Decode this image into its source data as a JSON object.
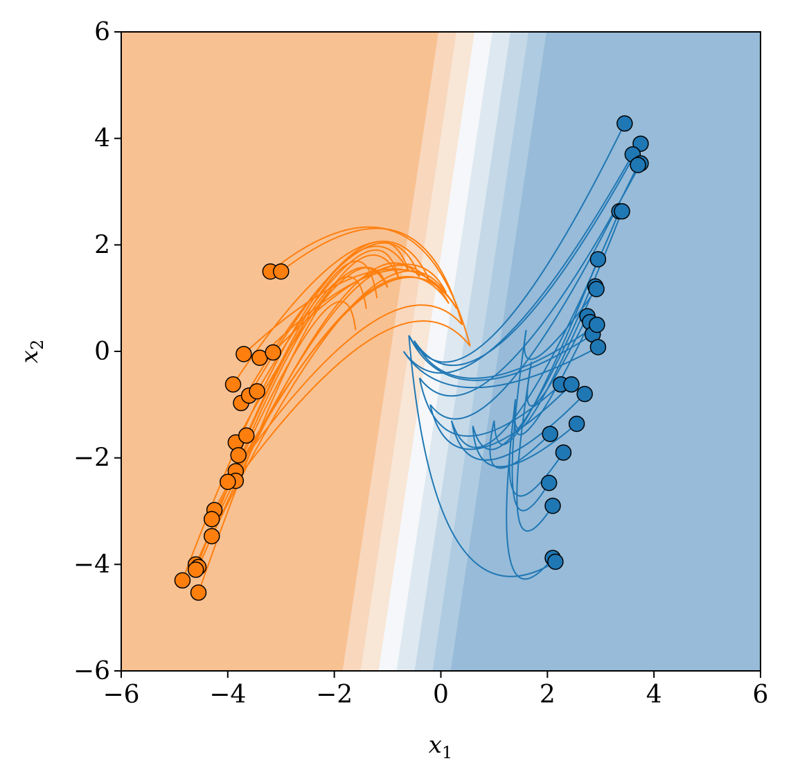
{
  "chart_data": {
    "type": "scatter",
    "title": "",
    "xlabel": "x",
    "xlabel_sub": "1",
    "ylabel": "x",
    "ylabel_sub": "2",
    "xlim": [
      -6,
      6
    ],
    "ylim": [
      -6,
      6
    ],
    "xticks": [
      -6,
      -4,
      -2,
      0,
      2,
      4,
      6
    ],
    "yticks": [
      -6,
      -4,
      -2,
      0,
      2,
      4,
      6
    ],
    "xtick_labels": [
      "−6",
      "−4",
      "−2",
      "0",
      "2",
      "4",
      "6"
    ],
    "ytick_labels": [
      "−6",
      "−4",
      "−2",
      "0",
      "2",
      "4",
      "6"
    ],
    "grid": false,
    "legend": "none",
    "colors": {
      "orange_series": "#ff7f0e",
      "blue_series": "#1f77b4",
      "region_orange": "#f8c192",
      "region_blue": "#97bbd8",
      "point_edge": "#000000"
    },
    "decision_boundary": {
      "direction_note": "linear contour bands",
      "x_at_bottom": -1.0,
      "x_at_top": 0.8,
      "bands": [
        "#f8c192",
        "#f8d7bd",
        "#f8e6d6",
        "#f5f7fa",
        "#dde8f0",
        "#c4d8e7",
        "#aecbe1",
        "#97bbd8"
      ]
    },
    "series": [
      {
        "class": "orange",
        "points": [
          [
            -3.2,
            1.5
          ],
          [
            -3.0,
            1.5
          ],
          [
            -3.7,
            -0.05
          ],
          [
            -3.4,
            -0.12
          ],
          [
            -3.15,
            -0.02
          ],
          [
            -3.9,
            -0.62
          ],
          [
            -3.75,
            -0.97
          ],
          [
            -3.6,
            -0.83
          ],
          [
            -3.45,
            -0.75
          ],
          [
            -3.85,
            -1.71
          ],
          [
            -3.65,
            -1.58
          ],
          [
            -3.8,
            -1.95
          ],
          [
            -3.85,
            -2.25
          ],
          [
            -3.85,
            -2.43
          ],
          [
            -4.0,
            -2.45
          ],
          [
            -4.25,
            -2.98
          ],
          [
            -4.3,
            -3.15
          ],
          [
            -4.3,
            -3.47
          ],
          [
            -4.6,
            -4.0
          ],
          [
            -4.55,
            -4.05
          ],
          [
            -4.85,
            -4.3
          ],
          [
            -4.55,
            -4.53
          ],
          [
            -4.6,
            -4.1
          ]
        ],
        "trajectory_ends": [
          [
            0.55,
            0.1
          ],
          [
            0.4,
            0.5
          ],
          [
            0.3,
            0.8
          ],
          [
            0.15,
            0.9
          ],
          [
            0.1,
            1.1
          ],
          [
            -0.2,
            1.3
          ],
          [
            -0.4,
            1.4
          ],
          [
            -0.6,
            1.5
          ],
          [
            -0.8,
            1.4
          ],
          [
            -1.0,
            1.2
          ],
          [
            -1.2,
            1.0
          ],
          [
            -1.4,
            0.8
          ],
          [
            -1.6,
            0.4
          ]
        ]
      },
      {
        "class": "blue",
        "points": [
          [
            3.45,
            4.28
          ],
          [
            3.75,
            3.9
          ],
          [
            3.6,
            3.7
          ],
          [
            3.75,
            3.53
          ],
          [
            3.7,
            3.5
          ],
          [
            3.35,
            2.63
          ],
          [
            3.4,
            2.63
          ],
          [
            2.95,
            1.73
          ],
          [
            2.9,
            1.22
          ],
          [
            2.92,
            1.17
          ],
          [
            2.75,
            0.66
          ],
          [
            2.8,
            0.55
          ],
          [
            2.85,
            0.32
          ],
          [
            2.93,
            0.5
          ],
          [
            2.95,
            0.08
          ],
          [
            2.25,
            -0.62
          ],
          [
            2.45,
            -0.62
          ],
          [
            2.7,
            -0.8
          ],
          [
            2.55,
            -1.36
          ],
          [
            2.05,
            -1.55
          ],
          [
            2.3,
            -1.9
          ],
          [
            2.03,
            -2.47
          ],
          [
            2.1,
            -2.9
          ],
          [
            2.1,
            -3.88
          ],
          [
            2.15,
            -3.95
          ]
        ],
        "trajectory_ends": [
          [
            -0.6,
            0.3
          ],
          [
            -0.5,
            0.2
          ],
          [
            -0.7,
            0.0
          ],
          [
            -0.4,
            -0.5
          ],
          [
            -0.2,
            -1.0
          ],
          [
            0.2,
            -1.3
          ],
          [
            0.6,
            -1.4
          ],
          [
            1.0,
            -1.3
          ],
          [
            1.4,
            -1.0
          ],
          [
            1.6,
            0.4
          ],
          [
            1.7,
            -0.2
          ],
          [
            1.4,
            -0.9
          ]
        ]
      }
    ]
  }
}
